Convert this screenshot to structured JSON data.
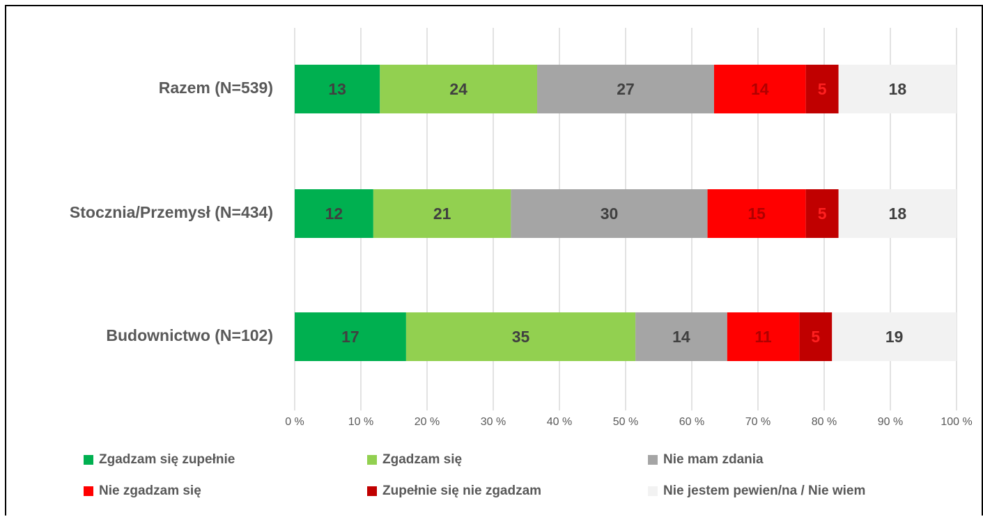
{
  "chart_data": {
    "type": "bar",
    "orientation": "horizontal",
    "stacked": "percent",
    "categories": [
      "Razem (N=539)",
      "Stocznia/Przemysł (N=434)",
      "Budownictwo (N=102)"
    ],
    "series": [
      {
        "name": "Zgadzam się zupełnie",
        "color": "#00b050",
        "label_color": "#404040",
        "values": [
          13,
          12,
          17
        ]
      },
      {
        "name": "Zgadzam się",
        "color": "#92d050",
        "label_color": "#404040",
        "values": [
          24,
          21,
          35
        ]
      },
      {
        "name": "Nie mam zdania",
        "color": "#a5a5a5",
        "label_color": "#404040",
        "values": [
          27,
          30,
          14
        ]
      },
      {
        "name": "Nie zgadzam się",
        "color": "#ff0000",
        "label_color": "#b00000",
        "values": [
          14,
          15,
          11
        ]
      },
      {
        "name": "Zupełnie się nie zgadzam",
        "color": "#c00000",
        "label_color": "#ff2020",
        "values": [
          5,
          5,
          5
        ]
      },
      {
        "name": "Nie jestem pewien/na / Nie wiem",
        "color": "#f2f2f2",
        "label_color": "#404040",
        "values": [
          18,
          18,
          19
        ]
      }
    ],
    "xlim": [
      0,
      100
    ],
    "xticks": [
      {
        "value": 0,
        "label": "0 %"
      },
      {
        "value": 10,
        "label": "10 %"
      },
      {
        "value": 20,
        "label": "20 %"
      },
      {
        "value": 30,
        "label": "30 %"
      },
      {
        "value": 40,
        "label": "40 %"
      },
      {
        "value": 50,
        "label": "50 %"
      },
      {
        "value": 60,
        "label": "60 %"
      },
      {
        "value": 70,
        "label": "70 %"
      },
      {
        "value": 80,
        "label": "80 %"
      },
      {
        "value": 90,
        "label": "90 %"
      },
      {
        "value": 100,
        "label": "100 %"
      }
    ],
    "grid": true,
    "legend": "bottom"
  }
}
